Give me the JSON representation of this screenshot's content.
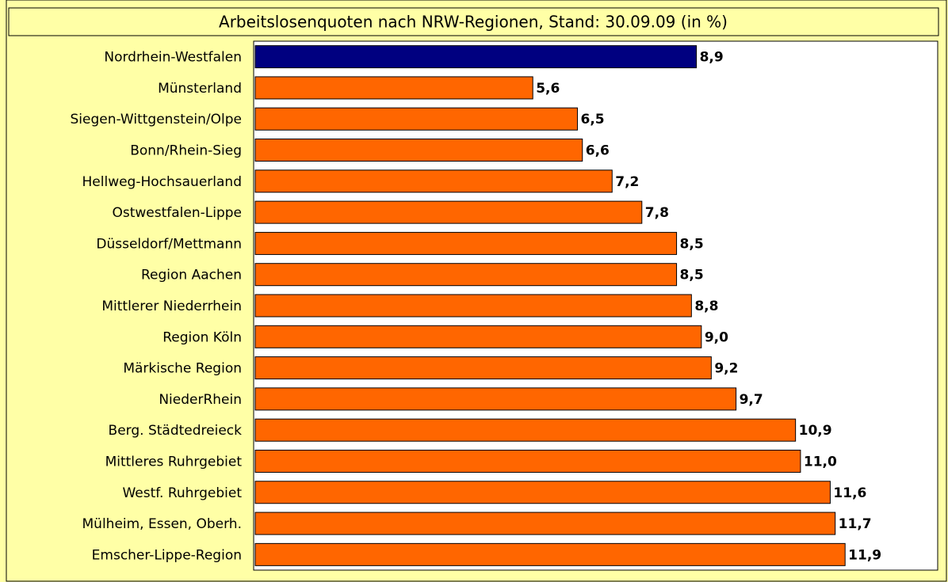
{
  "chart_data": {
    "type": "bar",
    "orientation": "horizontal",
    "title": "Arbeitslosenquoten nach NRW-Regionen, Stand: 30.09.09 (in %)",
    "categories": [
      "Nordrhein-Westfalen",
      "Münsterland",
      "Siegen-Wittgenstein/Olpe",
      "Bonn/Rhein-Sieg",
      "Hellweg-Hochsauerland",
      "Ostwestfalen-Lippe",
      "Düsseldorf/Mettmann",
      "Region Aachen",
      "Mittlerer Niederrhein",
      "Region Köln",
      "Märkische Region",
      "NiederRhein",
      "Berg. Städtedreieck",
      "Mittleres Ruhrgebiet",
      "Westf. Ruhrgebiet",
      "Mülheim, Essen, Oberh.",
      "Emscher-Lippe-Region"
    ],
    "values": [
      8.9,
      5.6,
      6.5,
      6.6,
      7.2,
      7.8,
      8.5,
      8.5,
      8.8,
      9.0,
      9.2,
      9.7,
      10.9,
      11.0,
      11.6,
      11.7,
      11.9
    ],
    "value_labels": [
      "8,9",
      "5,6",
      "6,5",
      "6,6",
      "7,2",
      "7,8",
      "8,5",
      "8,5",
      "8,8",
      "9,0",
      "9,2",
      "9,7",
      "10,9",
      "11,0",
      "11,6",
      "11,7",
      "11,9"
    ],
    "colors": [
      "#000080",
      "#ff6600",
      "#ff6600",
      "#ff6600",
      "#ff6600",
      "#ff6600",
      "#ff6600",
      "#ff6600",
      "#ff6600",
      "#ff6600",
      "#ff6600",
      "#ff6600",
      "#ff6600",
      "#ff6600",
      "#ff6600",
      "#ff6600",
      "#ff6600"
    ],
    "xlim": [
      0,
      13.8
    ]
  }
}
